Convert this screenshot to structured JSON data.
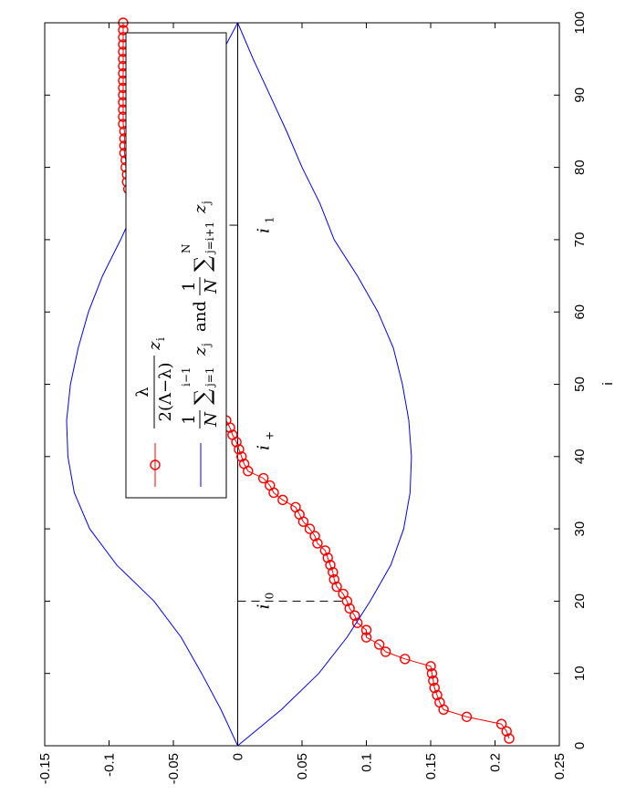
{
  "chart_data": {
    "type": "line",
    "orientation": "rotated-90-ccw",
    "xlabel": "i",
    "ylabel": "",
    "xlim": [
      0,
      100
    ],
    "ylim": [
      -0.15,
      0.25
    ],
    "xticks": [
      "0",
      "10",
      "20",
      "30",
      "40",
      "50",
      "60",
      "70",
      "80",
      "90",
      "100"
    ],
    "yticks": [
      "-0.15",
      "-0.1",
      "-0.05",
      "0",
      "0.05",
      "0.1",
      "0.15",
      "0.2",
      "0.25"
    ],
    "grid": false,
    "legend_position": "top-left",
    "legend": {
      "series1_frac_num": "λ",
      "series1_frac_den": "2(Λ−λ)",
      "series1_var": "z",
      "series1_sub": "i",
      "series2_frac_num": "1",
      "series2_frac_den": "N",
      "series2_sum1": "∑",
      "series2_sum1_sup": "i−1",
      "series2_sum1_sub": "j=1",
      "series2_var1": "z",
      "series2_var1_sub": "j",
      "series2_and": "and",
      "series2_sum2": "∑",
      "series2_sum2_sup": "N",
      "series2_sum2_sub": "j=i+1",
      "series2_var2": "z",
      "series2_var2_sub": "j"
    },
    "annotations": [
      {
        "label": "i",
        "sub": "0",
        "x": 20
      },
      {
        "label": "i",
        "sub": "+",
        "x": 42
      },
      {
        "label": "i",
        "sub": "1",
        "x": 72
      }
    ],
    "series": [
      {
        "color": "#ff0000",
        "marker": "circle",
        "x": [
          1,
          2,
          3,
          4,
          5,
          6,
          7,
          8,
          9,
          10,
          11,
          12,
          13,
          14,
          15,
          16,
          17,
          18,
          19,
          20,
          21,
          22,
          23,
          24,
          25,
          26,
          27,
          28,
          29,
          30,
          31,
          32,
          33,
          34,
          35,
          36,
          37,
          38,
          39,
          40,
          41,
          42,
          43,
          44,
          45,
          46,
          47,
          48,
          49,
          50,
          51,
          52,
          53,
          54,
          55,
          56,
          57,
          58,
          59,
          60,
          61,
          62,
          63,
          64,
          65,
          66,
          67,
          68,
          69,
          70,
          71,
          72,
          73,
          74,
          75,
          76,
          77,
          78,
          79,
          80,
          81,
          82,
          83,
          84,
          85,
          86,
          87,
          88,
          89,
          90,
          91,
          92,
          93,
          94,
          95,
          96,
          97,
          98,
          99,
          100
        ],
        "values": [
          0.211,
          0.209,
          0.205,
          0.178,
          0.16,
          0.157,
          0.155,
          0.153,
          0.152,
          0.151,
          0.15,
          0.13,
          0.115,
          0.11,
          0.1,
          0.1,
          0.093,
          0.091,
          0.087,
          0.085,
          0.082,
          0.077,
          0.075,
          0.074,
          0.072,
          0.07,
          0.068,
          0.062,
          0.06,
          0.056,
          0.051,
          0.048,
          0.045,
          0.035,
          0.028,
          0.025,
          0.02,
          0.008,
          0.005,
          0.003,
          0.001,
          -0.001,
          -0.004,
          -0.006,
          -0.009,
          -0.014,
          -0.017,
          -0.021,
          -0.024,
          -0.027,
          -0.03,
          -0.031,
          -0.036,
          -0.038,
          -0.043,
          -0.046,
          -0.047,
          -0.049,
          -0.05,
          -0.051,
          -0.052,
          -0.058,
          -0.06,
          -0.06,
          -0.061,
          -0.061,
          -0.062,
          -0.062,
          -0.065,
          -0.067,
          -0.068,
          -0.074,
          -0.076,
          -0.077,
          -0.078,
          -0.079,
          -0.085,
          -0.086,
          -0.086,
          -0.087,
          -0.087,
          -0.088,
          -0.088,
          -0.088,
          -0.088,
          -0.089,
          -0.089,
          -0.089,
          -0.089,
          -0.089,
          -0.089,
          -0.089,
          -0.089,
          -0.089,
          -0.089,
          -0.089,
          -0.089,
          -0.089,
          -0.089,
          -0.089
        ]
      },
      {
        "color": "#0000ff",
        "marker": "none",
        "x": [
          0,
          5,
          10,
          15,
          20,
          25,
          30,
          35,
          40,
          45,
          50,
          55,
          60,
          65,
          70,
          75,
          80,
          85,
          90,
          95,
          100
        ],
        "values": [
          0,
          0.034,
          0.063,
          0.085,
          0.103,
          0.119,
          0.129,
          0.134,
          0.135,
          0.133,
          0.128,
          0.121,
          0.109,
          0.093,
          0.075,
          0.064,
          0.05,
          0.038,
          0.025,
          0.012,
          0
        ]
      },
      {
        "color": "#0000ff",
        "marker": "none",
        "x": [
          0,
          5,
          10,
          15,
          20,
          25,
          30,
          35,
          40,
          45,
          50,
          55,
          60,
          65,
          70,
          75,
          80,
          85,
          90,
          95,
          100
        ],
        "values": [
          0,
          -0.013,
          -0.028,
          -0.044,
          -0.065,
          -0.094,
          -0.115,
          -0.127,
          -0.132,
          -0.133,
          -0.13,
          -0.124,
          -0.116,
          -0.105,
          -0.091,
          -0.078,
          -0.06,
          -0.046,
          -0.031,
          -0.015,
          0
        ]
      }
    ]
  }
}
